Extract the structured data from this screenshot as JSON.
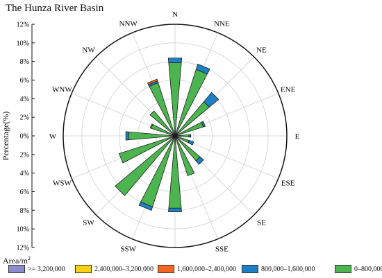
{
  "chart_data": {
    "type": "polar-stacked-bar",
    "title": "The Hunza River Basin",
    "ylabel": "Percentage(%)",
    "rlim": [
      0,
      12
    ],
    "r_ticks_upper": [
      "12%",
      "10%",
      "8%",
      "6%",
      "4%",
      "2%",
      "0%"
    ],
    "r_ticks_lower": [
      "2%",
      "4%",
      "6%",
      "8%",
      "10%",
      "12%"
    ],
    "directions": [
      "N",
      "NNE",
      "NE",
      "ENE",
      "E",
      "ESE",
      "SE",
      "SSE",
      "S",
      "SSW",
      "SW",
      "WSW",
      "W",
      "WNW",
      "NW",
      "NNW"
    ],
    "legend_title": "Area/m²",
    "series": [
      {
        "name": "0–800,000",
        "color": "#4cb550",
        "values": [
          7.9,
          7.5,
          4.8,
          3.2,
          1.5,
          1.6,
          3.5,
          4.5,
          7.8,
          8.0,
          8.4,
          6.3,
          5.0,
          2.7,
          3.5,
          6.0
        ]
      },
      {
        "name": "800,000–1,600,000",
        "color": "#1f7fc4",
        "values": [
          0.5,
          0.6,
          1.3,
          0.2,
          0.2,
          0.5,
          0.5,
          0,
          0.4,
          0.4,
          0,
          0,
          0.3,
          0,
          0,
          0.2
        ]
      },
      {
        "name": "1,600,000–2,400,000",
        "color": "#f26522",
        "values": [
          0,
          0,
          0,
          0,
          0,
          0,
          0,
          0,
          0,
          0,
          0,
          0,
          0,
          0,
          0,
          0.2
        ]
      },
      {
        "name": "2,400,000–3,200,000",
        "color": "#f7d117",
        "values": [
          0,
          0,
          0,
          0,
          0,
          0,
          0,
          0,
          0,
          0,
          0,
          0,
          0,
          0.1,
          0,
          0
        ]
      },
      {
        "name": ">= 3,200,000",
        "color": "#8c8ccd",
        "values": [
          0,
          0,
          0,
          0,
          0,
          0,
          0,
          0,
          0,
          0,
          0,
          0,
          0,
          0,
          0,
          0
        ]
      }
    ],
    "legend_order": [
      4,
      3,
      2,
      1,
      0
    ],
    "grid": true
  }
}
